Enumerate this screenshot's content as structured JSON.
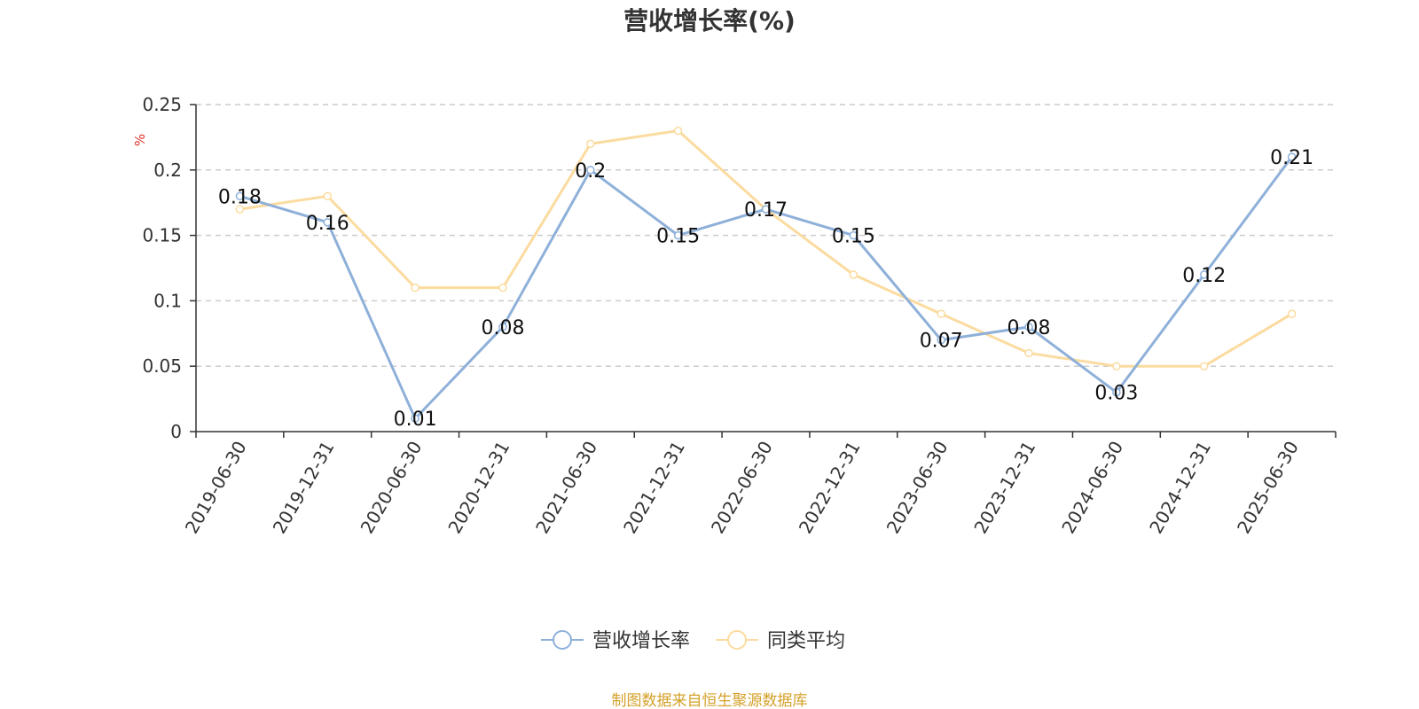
{
  "chart_data": {
    "type": "line",
    "title": "营收增长率(%)",
    "ylabel": "%",
    "ylim": [
      0,
      0.25
    ],
    "yticks": [
      0,
      0.05,
      0.1,
      0.15,
      0.2,
      0.25
    ],
    "ytick_labels": [
      "0",
      "0.05",
      "0.1",
      "0.15",
      "0.2",
      "0.25"
    ],
    "categories": [
      "2019-06-30",
      "2019-12-31",
      "2020-06-30",
      "2020-12-31",
      "2021-06-30",
      "2021-12-31",
      "2022-06-30",
      "2022-12-31",
      "2023-06-30",
      "2023-12-31",
      "2024-06-30",
      "2024-12-31",
      "2025-06-30"
    ],
    "series": [
      {
        "name": "营收增长率",
        "color": "#8eb0d9",
        "values": [
          0.18,
          0.16,
          0.01,
          0.08,
          0.2,
          0.15,
          0.17,
          0.15,
          0.07,
          0.08,
          0.03,
          0.12,
          0.21
        ],
        "labels": [
          "0.18",
          "0.16",
          "0.01",
          "0.08",
          "0.2",
          "0.15",
          "0.17",
          "0.15",
          "0.07",
          "0.08",
          "0.03",
          "0.12",
          "0.21"
        ]
      },
      {
        "name": "同类平均",
        "color": "#fbdb9f",
        "values": [
          0.17,
          0.18,
          0.11,
          0.11,
          0.22,
          0.23,
          0.17,
          0.12,
          0.09,
          0.06,
          0.05,
          0.05,
          0.09
        ]
      }
    ],
    "grid": true,
    "legend_position": "bottom-center",
    "unit_color": "#e0302a"
  },
  "source": {
    "text": "制图数据来自恒生聚源数据库",
    "color": "#d4a12a"
  }
}
